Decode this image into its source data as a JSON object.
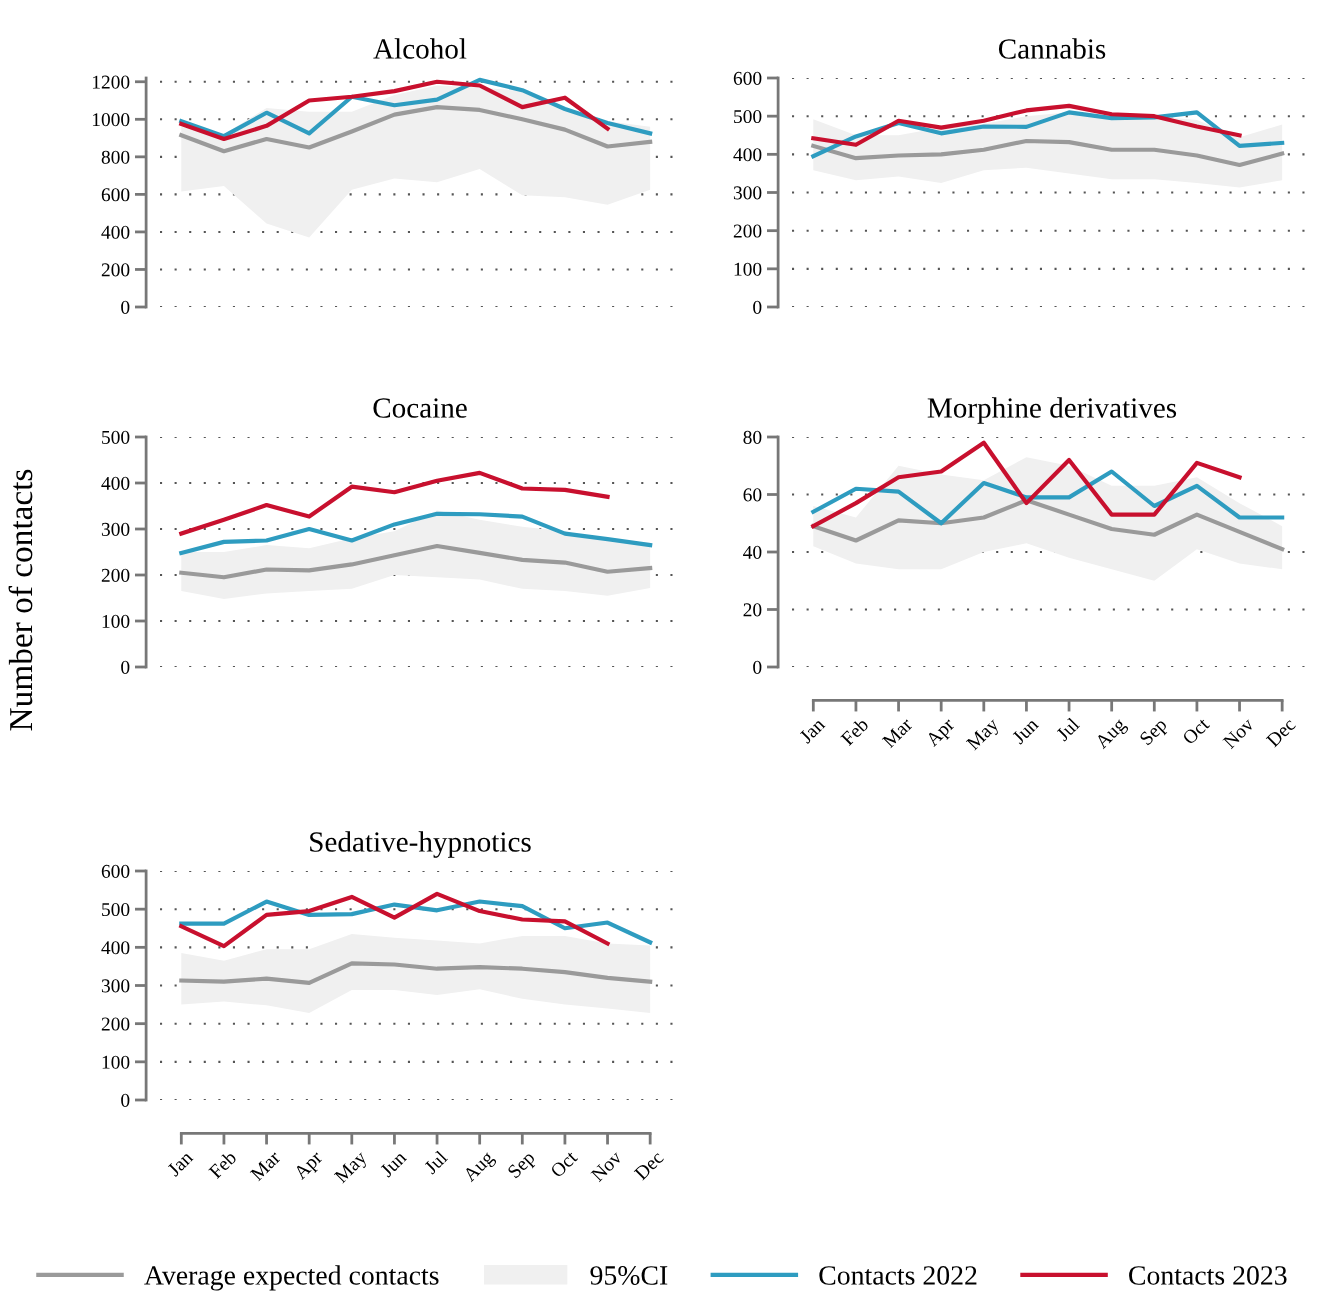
{
  "chart_data": [
    {
      "type": "line",
      "title": "Alcohol",
      "annotations": [
        "95%CI"
      ],
      "categories": [
        "Jan",
        "Feb",
        "Mar",
        "Apr",
        "May",
        "Jun",
        "Jul",
        "Aug",
        "Sep",
        "Oct",
        "Nov",
        "Dec"
      ],
      "ylim": [
        0,
        1220
      ],
      "yticks": [
        0,
        200,
        400,
        600,
        800,
        1000,
        1200
      ],
      "grid": "y",
      "tick_labels": "y",
      "legend": "bottom",
      "series": [
        {
          "name": "Average expected contacts",
          "color": "#9a9a9a",
          "values": [
            915,
            830,
            895,
            850,
            935,
            1025,
            1065,
            1050,
            1000,
            945,
            855,
            880
          ],
          "lower": [
            615,
            645,
            445,
            370,
            625,
            685,
            665,
            735,
            595,
            585,
            545,
            625
          ],
          "upper": [
            960,
            920,
            1060,
            1040,
            1040,
            1130,
            1180,
            1170,
            1150,
            1060,
            990,
            960
          ]
        },
        {
          "name": "Contacts 2022",
          "color": "#2e9cc0",
          "values": [
            990,
            910,
            1035,
            925,
            1120,
            1075,
            1105,
            1210,
            1155,
            1055,
            980,
            925
          ]
        },
        {
          "name": "Contacts 2023",
          "color": "#c8102e",
          "values": [
            975,
            895,
            965,
            1100,
            1120,
            1150,
            1200,
            1180,
            1065,
            1115,
            950,
            null
          ]
        }
      ]
    },
    {
      "type": "line",
      "title": "Cannabis",
      "categories": [
        "Jan",
        "Feb",
        "Mar",
        "Apr",
        "May",
        "Jun",
        "Jul",
        "Aug",
        "Sep",
        "Oct",
        "Nov",
        "Dec"
      ],
      "ylim": [
        0,
        600
      ],
      "yticks": [
        0,
        100,
        200,
        300,
        400,
        500,
        600
      ],
      "grid": "y",
      "tick_labels": "y",
      "legend": "bottom",
      "series": [
        {
          "name": "Average expected contacts",
          "color": "#9a9a9a",
          "values": [
            422,
            390,
            397,
            400,
            412,
            435,
            432,
            412,
            412,
            397,
            372,
            402
          ],
          "lower": [
            358,
            332,
            342,
            325,
            358,
            365,
            350,
            335,
            335,
            325,
            313,
            332
          ],
          "upper": [
            492,
            450,
            450,
            470,
            480,
            500,
            510,
            500,
            500,
            490,
            445,
            478
          ]
        },
        {
          "name": "Contacts 2022",
          "color": "#2e9cc0",
          "values": [
            395,
            447,
            482,
            455,
            473,
            472,
            510,
            495,
            497,
            510,
            422,
            430
          ]
        },
        {
          "name": "Contacts 2023",
          "color": "#c8102e",
          "values": [
            442,
            425,
            488,
            470,
            488,
            515,
            527,
            505,
            500,
            473,
            450,
            null
          ]
        }
      ]
    },
    {
      "type": "line",
      "title": "Cocaine",
      "ylabel": "Number of contacts",
      "categories": [
        "Jan",
        "Feb",
        "Mar",
        "Apr",
        "May",
        "Jun",
        "Jul",
        "Aug",
        "Sep",
        "Oct",
        "Nov",
        "Dec"
      ],
      "ylim": [
        0,
        500
      ],
      "yticks": [
        0,
        100,
        200,
        300,
        400,
        500
      ],
      "grid": "y",
      "tick_labels": "y",
      "legend": "bottom",
      "series": [
        {
          "name": "Average expected contacts",
          "color": "#9a9a9a",
          "values": [
            205,
            195,
            212,
            210,
            223,
            243,
            263,
            248,
            233,
            227,
            207,
            215
          ],
          "lower": [
            165,
            148,
            160,
            165,
            170,
            200,
            195,
            190,
            170,
            165,
            155,
            172
          ],
          "upper": [
            250,
            250,
            265,
            258,
            280,
            295,
            340,
            320,
            305,
            295,
            275,
            270
          ]
        },
        {
          "name": "Contacts 2022",
          "color": "#2e9cc0",
          "values": [
            248,
            272,
            275,
            300,
            275,
            310,
            333,
            332,
            327,
            290,
            278,
            265
          ]
        },
        {
          "name": "Contacts 2023",
          "color": "#c8102e",
          "values": [
            290,
            320,
            352,
            327,
            392,
            380,
            405,
            422,
            388,
            385,
            370,
            null
          ]
        }
      ]
    },
    {
      "type": "line",
      "title": "Morphine derivatives",
      "categories": [
        "Jan",
        "Feb",
        "Mar",
        "Apr",
        "May",
        "Jun",
        "Jul",
        "Aug",
        "Sep",
        "Oct",
        "Nov",
        "Dec"
      ],
      "ylim": [
        0,
        80
      ],
      "yticks": [
        0,
        20,
        40,
        60,
        80
      ],
      "grid": "y",
      "legend": "bottom",
      "series": [
        {
          "name": "Average expected contacts",
          "color": "#9a9a9a",
          "values": [
            49,
            44,
            51,
            50,
            52,
            58,
            53,
            48,
            46,
            53,
            47,
            41
          ],
          "lower": [
            42,
            36,
            34,
            34,
            40,
            43,
            38,
            34,
            30,
            41,
            36,
            34
          ],
          "upper": [
            56,
            52,
            70,
            67,
            65,
            73,
            70,
            63,
            63,
            66,
            57,
            49
          ]
        },
        {
          "name": "Contacts 2022",
          "color": "#2e9cc0",
          "values": [
            54,
            62,
            61,
            50,
            64,
            59,
            59,
            68,
            56,
            63,
            52,
            52
          ]
        },
        {
          "name": "Contacts 2023",
          "color": "#c8102e",
          "values": [
            49,
            57,
            66,
            68,
            78,
            57,
            72,
            53,
            53,
            71,
            66,
            null
          ]
        }
      ]
    },
    {
      "type": "line",
      "title": "Sedative-hypnotics",
      "categories": [
        "Jan",
        "Feb",
        "Mar",
        "Apr",
        "May",
        "Jun",
        "Jul",
        "Aug",
        "Sep",
        "Oct",
        "Nov",
        "Dec"
      ],
      "ylim": [
        0,
        600
      ],
      "yticks": [
        0,
        100,
        200,
        300,
        400,
        500,
        600
      ],
      "grid": "y",
      "legend": "bottom",
      "series": [
        {
          "name": "Average expected contacts",
          "color": "#9a9a9a",
          "values": [
            313,
            310,
            318,
            307,
            358,
            355,
            344,
            348,
            344,
            335,
            320,
            310
          ],
          "lower": [
            250,
            258,
            248,
            228,
            288,
            288,
            275,
            290,
            265,
            250,
            240,
            228
          ],
          "upper": [
            385,
            365,
            395,
            395,
            435,
            425,
            418,
            410,
            430,
            430,
            410,
            405
          ]
        },
        {
          "name": "Contacts 2022",
          "color": "#2e9cc0",
          "values": [
            462,
            462,
            520,
            485,
            487,
            512,
            497,
            520,
            508,
            450,
            465,
            413
          ]
        },
        {
          "name": "Contacts 2023",
          "color": "#c8102e",
          "values": [
            455,
            403,
            485,
            495,
            532,
            478,
            540,
            495,
            473,
            468,
            410,
            null
          ]
        }
      ]
    }
  ]
}
